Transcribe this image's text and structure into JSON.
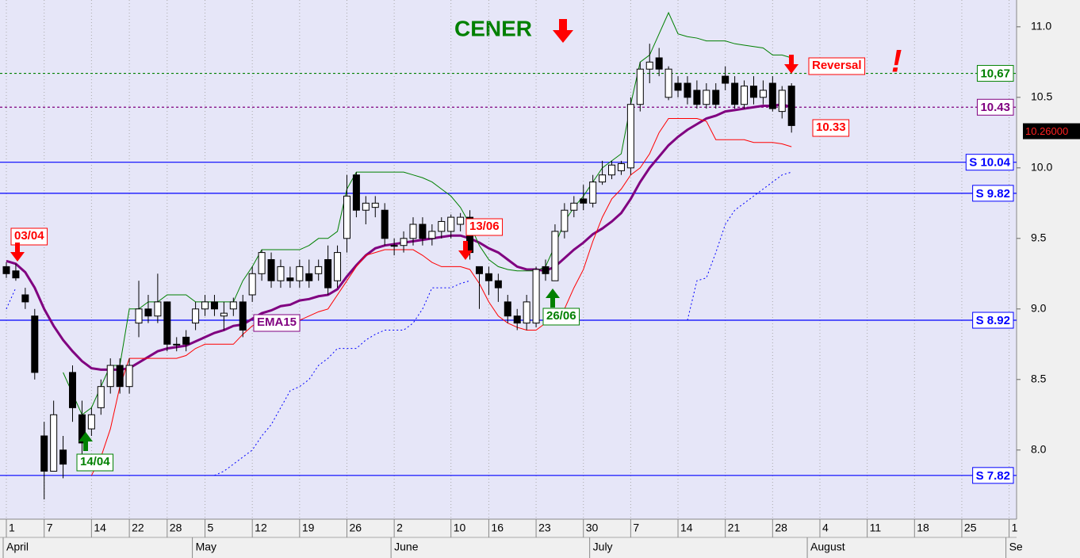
{
  "chart_data": {
    "type": "candlestick",
    "title": "CENER",
    "ylim": [
      7.51,
      11.19
    ],
    "yticks": [
      {
        "value": 8,
        "label": "8.0"
      },
      {
        "value": 8.5,
        "label": "8.5"
      },
      {
        "value": 9,
        "label": "9.0"
      },
      {
        "value": 9.5,
        "label": "9.5"
      },
      {
        "value": 10,
        "label": "10.0"
      },
      {
        "value": 10.5,
        "label": "10.5"
      },
      {
        "value": 11,
        "label": "11.0"
      }
    ],
    "grid": true,
    "categories": [
      "1",
      null,
      null,
      null,
      "7",
      null,
      null,
      null,
      null,
      "14",
      null,
      null,
      null,
      "22",
      null,
      null,
      null,
      "28",
      null,
      null,
      null,
      "5",
      null,
      null,
      null,
      null,
      "12",
      null,
      null,
      null,
      null,
      "19",
      null,
      null,
      null,
      null,
      "26",
      null,
      null,
      null,
      null,
      "2",
      null,
      null,
      null,
      null,
      null,
      "10",
      null,
      null,
      null,
      "16",
      null,
      null,
      null,
      null,
      "23",
      null,
      null,
      null,
      null,
      "30",
      null,
      null,
      null,
      null,
      "7",
      null,
      null,
      null,
      null,
      "14",
      null,
      null,
      null,
      null,
      "21",
      null,
      null,
      null,
      null,
      "28",
      null,
      null,
      null,
      null,
      "4",
      null,
      null,
      null,
      null,
      "11",
      null,
      null,
      null,
      null,
      "18",
      null,
      null,
      null,
      null,
      "25",
      null,
      null,
      null,
      null,
      "1"
    ],
    "months": [
      "April",
      null,
      null,
      null,
      null,
      null,
      null,
      null,
      null,
      null,
      null,
      null,
      null,
      null,
      null,
      null,
      null,
      null,
      null,
      null,
      "May",
      null,
      null,
      null,
      null,
      null,
      null,
      null,
      null,
      null,
      null,
      null,
      null,
      null,
      null,
      null,
      null,
      null,
      null,
      null,
      null,
      "June",
      null,
      null,
      null,
      null,
      null,
      null,
      null,
      null,
      null,
      null,
      null,
      null,
      null,
      null,
      null,
      null,
      null,
      null,
      null,
      null,
      "July",
      null,
      null,
      null,
      null,
      null,
      null,
      null,
      null,
      null,
      null,
      null,
      null,
      null,
      null,
      null,
      null,
      null,
      null,
      null,
      null,
      null,
      null,
      "August",
      null,
      null,
      null,
      null,
      null,
      null,
      null,
      null,
      null,
      null,
      null,
      null,
      null,
      null,
      null,
      null,
      null,
      null,
      null,
      null,
      "Se"
    ],
    "ohlc": [
      [
        9.3,
        9.33,
        9.22,
        9.25
      ],
      [
        9.27,
        9.32,
        9.2,
        9.22
      ],
      [
        9.1,
        9.15,
        9.0,
        9.05
      ],
      [
        8.95,
        9.0,
        8.5,
        8.55
      ],
      [
        8.1,
        8.2,
        7.65,
        7.85
      ],
      [
        7.85,
        8.35,
        7.85,
        8.25
      ],
      [
        8.0,
        8.1,
        7.8,
        7.9
      ],
      [
        8.55,
        8.6,
        8.2,
        8.3
      ],
      [
        8.25,
        8.35,
        7.95,
        8.05
      ],
      [
        8.15,
        8.3,
        8.1,
        8.25
      ],
      [
        8.3,
        8.5,
        8.25,
        8.45
      ],
      [
        8.45,
        8.65,
        8.4,
        8.6
      ],
      [
        8.6,
        8.65,
        8.4,
        8.45
      ],
      [
        8.45,
        8.65,
        8.4,
        8.6
      ],
      [
        8.9,
        9.2,
        8.8,
        9.0
      ],
      [
        9.0,
        9.1,
        8.9,
        8.95
      ],
      [
        8.95,
        9.25,
        8.9,
        9.05
      ],
      [
        9.05,
        9.05,
        8.7,
        8.75
      ],
      [
        8.75,
        8.8,
        8.7,
        8.75
      ],
      [
        8.8,
        8.85,
        8.7,
        8.75
      ],
      [
        8.9,
        9.05,
        8.85,
        9.0
      ],
      [
        9.0,
        9.1,
        8.95,
        9.05
      ],
      [
        9.05,
        9.1,
        8.95,
        9.0
      ],
      [
        8.95,
        9.05,
        8.85,
        8.97
      ],
      [
        9.0,
        9.08,
        8.95,
        9.05
      ],
      [
        9.05,
        9.1,
        8.8,
        8.85
      ],
      [
        9.1,
        9.3,
        9.05,
        9.25
      ],
      [
        9.25,
        9.42,
        9.2,
        9.4
      ],
      [
        9.35,
        9.4,
        9.15,
        9.2
      ],
      [
        9.2,
        9.35,
        9.15,
        9.3
      ],
      [
        9.22,
        9.3,
        9.15,
        9.2
      ],
      [
        9.2,
        9.35,
        9.15,
        9.3
      ],
      [
        9.25,
        9.35,
        9.15,
        9.2
      ],
      [
        9.25,
        9.35,
        9.2,
        9.3
      ],
      [
        9.35,
        9.45,
        9.1,
        9.15
      ],
      [
        9.2,
        9.45,
        9.15,
        9.4
      ],
      [
        9.5,
        9.95,
        9.4,
        9.8
      ],
      [
        9.95,
        9.97,
        9.65,
        9.7
      ],
      [
        9.7,
        9.8,
        9.6,
        9.75
      ],
      [
        9.72,
        9.8,
        9.65,
        9.75
      ],
      [
        9.7,
        9.75,
        9.45,
        9.5
      ],
      [
        9.45,
        9.5,
        9.38,
        9.45
      ],
      [
        9.45,
        9.55,
        9.4,
        9.5
      ],
      [
        9.5,
        9.65,
        9.45,
        9.6
      ],
      [
        9.6,
        9.65,
        9.45,
        9.5
      ],
      [
        9.5,
        9.6,
        9.45,
        9.55
      ],
      [
        9.55,
        9.65,
        9.5,
        9.62
      ],
      [
        9.55,
        9.67,
        9.5,
        9.65
      ],
      [
        9.6,
        9.68,
        9.55,
        9.65
      ],
      [
        9.65,
        9.7,
        9.35,
        9.4
      ],
      [
        9.3,
        9.3,
        9.0,
        9.25
      ],
      [
        9.25,
        9.3,
        9.1,
        9.2
      ],
      [
        9.2,
        9.25,
        9.05,
        9.15
      ],
      [
        9.05,
        9.1,
        8.9,
        8.95
      ],
      [
        8.95,
        9.0,
        8.85,
        8.9
      ],
      [
        8.9,
        9.1,
        8.85,
        9.05
      ],
      [
        8.9,
        9.3,
        8.87,
        9.28
      ],
      [
        9.3,
        9.35,
        9.2,
        9.25
      ],
      [
        9.2,
        9.6,
        9.2,
        9.55
      ],
      [
        9.55,
        9.75,
        9.5,
        9.7
      ],
      [
        9.7,
        9.8,
        9.65,
        9.75
      ],
      [
        9.78,
        9.88,
        9.7,
        9.75
      ],
      [
        9.75,
        9.95,
        9.72,
        9.9
      ],
      [
        9.9,
        10.05,
        9.88,
        9.95
      ],
      [
        9.95,
        10.05,
        9.92,
        10.02
      ],
      [
        9.98,
        10.05,
        9.95,
        10.03
      ],
      [
        10.0,
        10.5,
        9.95,
        10.45
      ],
      [
        10.45,
        10.75,
        10.4,
        10.7
      ],
      [
        10.7,
        10.88,
        10.6,
        10.75
      ],
      [
        10.78,
        10.85,
        10.65,
        10.7
      ],
      [
        10.5,
        10.72,
        10.48,
        10.7
      ],
      [
        10.6,
        10.65,
        10.5,
        10.55
      ],
      [
        10.6,
        10.65,
        10.45,
        10.5
      ],
      [
        10.55,
        10.62,
        10.42,
        10.45
      ],
      [
        10.45,
        10.6,
        10.42,
        10.55
      ],
      [
        10.55,
        10.6,
        10.42,
        10.45
      ],
      [
        10.65,
        10.72,
        10.55,
        10.6
      ],
      [
        10.6,
        10.65,
        10.42,
        10.45
      ],
      [
        10.45,
        10.62,
        10.42,
        10.58
      ],
      [
        10.58,
        10.65,
        10.45,
        10.5
      ],
      [
        10.5,
        10.62,
        10.45,
        10.55
      ],
      [
        10.6,
        10.65,
        10.4,
        10.42
      ],
      [
        10.4,
        10.58,
        10.35,
        10.55
      ],
      [
        10.58,
        10.6,
        10.25,
        10.3
      ],
      null,
      null,
      null,
      null,
      null,
      null,
      null,
      null,
      null,
      null,
      null,
      null,
      null,
      null,
      null,
      null,
      null,
      null,
      null,
      null,
      null,
      null,
      null
    ],
    "series": [
      {
        "name": "EMA15",
        "color": "#800080",
        "width": 3,
        "dash": "none",
        "values": [
          9.34,
          9.32,
          9.26,
          9.15,
          9.0,
          8.88,
          8.78,
          8.7,
          8.63,
          8.58,
          8.57,
          8.57,
          8.57,
          8.58,
          8.62,
          8.66,
          8.7,
          8.72,
          8.73,
          8.74,
          8.77,
          8.8,
          8.83,
          8.85,
          8.88,
          8.89,
          8.93,
          8.97,
          8.99,
          9.02,
          9.03,
          9.06,
          9.07,
          9.09,
          9.1,
          9.14,
          9.23,
          9.31,
          9.38,
          9.43,
          9.45,
          9.46,
          9.47,
          9.48,
          9.49,
          9.5,
          9.51,
          9.52,
          9.52,
          9.5,
          9.47,
          9.43,
          9.4,
          9.35,
          9.3,
          9.28,
          9.28,
          9.27,
          9.3,
          9.36,
          9.42,
          9.47,
          9.53,
          9.57,
          9.62,
          9.68,
          9.78,
          9.9,
          10.0,
          10.08,
          10.16,
          10.22,
          10.27,
          10.31,
          10.35,
          10.37,
          10.4,
          10.41,
          10.42,
          10.43,
          10.44,
          10.44,
          10.45,
          10.43,
          null,
          null,
          null,
          null,
          null,
          null,
          null,
          null,
          null,
          null,
          null,
          null,
          null,
          null,
          null,
          null,
          null,
          null,
          null,
          null,
          null,
          null,
          null
        ]
      },
      {
        "color": "#008000",
        "width": 1,
        "dash": "none",
        "values": [
          null,
          null,
          null,
          null,
          null,
          null,
          8.55,
          8.4,
          8.25,
          8.3,
          8.45,
          8.6,
          8.6,
          9.0,
          9.0,
          9.05,
          9.05,
          9.1,
          9.1,
          9.1,
          9.05,
          9.05,
          9.05,
          9.05,
          9.05,
          9.2,
          9.3,
          9.42,
          9.42,
          9.42,
          9.42,
          9.42,
          9.45,
          9.5,
          9.5,
          9.55,
          9.85,
          9.97,
          9.97,
          9.97,
          9.97,
          9.97,
          9.97,
          9.95,
          9.93,
          9.9,
          9.85,
          9.8,
          9.72,
          9.6,
          9.45,
          9.35,
          9.3,
          9.28,
          9.27,
          9.27,
          9.27,
          9.3,
          9.45,
          9.62,
          9.72,
          9.8,
          9.9,
          10.0,
          10.05,
          10.1,
          10.45,
          10.75,
          10.8,
          10.95,
          11.1,
          10.95,
          10.93,
          10.92,
          10.9,
          10.9,
          10.9,
          10.88,
          10.87,
          10.86,
          10.85,
          10.8,
          10.8,
          10.78,
          null,
          null,
          null,
          null,
          null,
          null,
          null,
          null,
          null,
          null,
          null,
          null,
          null,
          null,
          null,
          null,
          null,
          null,
          null,
          null,
          null,
          null,
          null
        ]
      },
      {
        "color": "#ff0000",
        "width": 1,
        "dash": "none",
        "values": [
          null,
          null,
          null,
          null,
          null,
          null,
          null,
          null,
          null,
          7.82,
          7.95,
          8.15,
          8.45,
          8.65,
          8.65,
          8.65,
          8.65,
          8.65,
          8.65,
          8.67,
          8.72,
          8.75,
          8.75,
          8.75,
          8.75,
          8.82,
          8.88,
          8.92,
          8.92,
          8.92,
          8.92,
          8.92,
          8.95,
          8.98,
          9.0,
          9.1,
          9.2,
          9.3,
          9.38,
          9.4,
          9.42,
          9.42,
          9.42,
          9.42,
          9.38,
          9.33,
          9.3,
          9.3,
          9.3,
          9.28,
          9.18,
          9.05,
          8.95,
          8.9,
          8.87,
          8.85,
          8.85,
          8.9,
          8.95,
          9.0,
          9.15,
          9.28,
          9.48,
          9.65,
          9.78,
          9.85,
          9.95,
          10.0,
          10.1,
          10.25,
          10.35,
          10.35,
          10.35,
          10.35,
          10.33,
          10.2,
          10.2,
          10.2,
          10.2,
          10.18,
          10.18,
          10.18,
          10.17,
          10.15,
          null,
          null,
          null,
          null,
          null,
          null,
          null,
          null,
          null,
          null,
          null,
          null,
          null,
          null,
          null,
          null,
          null,
          null,
          null,
          null,
          null,
          null,
          null
        ]
      },
      {
        "color": "#0000ff",
        "width": 1,
        "dash": "2,3",
        "values": [
          9.0,
          9.15,
          null,
          null,
          null,
          null,
          null,
          null,
          null,
          null,
          null,
          null,
          null,
          null,
          null,
          null,
          null,
          null,
          null,
          null,
          null,
          null,
          7.82,
          7.85,
          7.9,
          7.95,
          8.0,
          8.1,
          8.18,
          8.3,
          8.42,
          8.45,
          8.5,
          8.6,
          8.65,
          8.72,
          8.72,
          8.72,
          8.78,
          8.82,
          8.85,
          8.85,
          8.85,
          8.9,
          9.0,
          9.15,
          9.15,
          9.15,
          9.18,
          9.2,
          null,
          null,
          null,
          null,
          null,
          null,
          null,
          null,
          null,
          null,
          null,
          null,
          null,
          null,
          null,
          null,
          null,
          null,
          null,
          null,
          null,
          null,
          8.92,
          9.2,
          9.22,
          9.4,
          9.6,
          9.7,
          9.75,
          9.8,
          9.85,
          9.9,
          9.95,
          9.97,
          null,
          null,
          null,
          null,
          null,
          null,
          null,
          null,
          null,
          null,
          null,
          null,
          null,
          null,
          null,
          null,
          null,
          null,
          null,
          null,
          null,
          null,
          null
        ]
      }
    ],
    "levels": [
      {
        "value": 10.67,
        "label": "10,67",
        "color": "#008000",
        "dash": "3,3"
      },
      {
        "value": 10.43,
        "label": "10.43",
        "color": "#800080",
        "dash": "3,3"
      },
      {
        "value": 10.04,
        "label": "S 10.04",
        "color": "#0000ff",
        "dash": "none"
      },
      {
        "value": 9.82,
        "label": "S 9.82",
        "color": "#0000ff",
        "dash": "none"
      },
      {
        "value": 8.92,
        "label": "S 8.92",
        "color": "#0000ff",
        "dash": "none"
      },
      {
        "value": 7.82,
        "label": "S 7.82",
        "color": "#0000ff",
        "dash": "none"
      }
    ],
    "last_price": {
      "value": 10.26,
      "label": "10.26000"
    },
    "annotations": [
      {
        "text": "03/04",
        "color": "#ff0000"
      },
      {
        "text": "14/04",
        "color": "#008000"
      },
      {
        "text": "13/06",
        "color": "#ff0000"
      },
      {
        "text": "26/06",
        "color": "#008000"
      },
      {
        "text": "EMA15",
        "color": "#800080"
      },
      {
        "text": "Reversal",
        "color": "#ff0000"
      },
      {
        "text": "10.33",
        "color": "#ff0000"
      },
      {
        "text": "!",
        "color": "#ff0000"
      }
    ]
  }
}
